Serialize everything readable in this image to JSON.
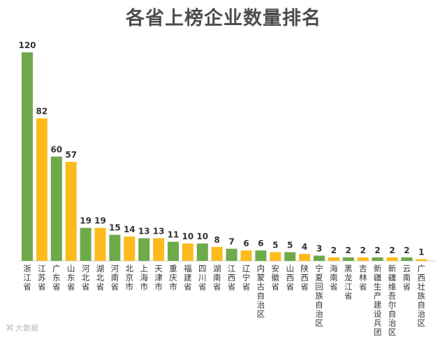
{
  "chart_data": {
    "type": "bar",
    "title": "各省上榜企业数量排名",
    "categories": [
      "浙江省",
      "江苏省",
      "广东省",
      "山东省",
      "河北省",
      "湖北省",
      "河南省",
      "北京市",
      "上海市",
      "天津市",
      "重庆市",
      "福建省",
      "四川省",
      "湖南省",
      "江西省",
      "辽宁省",
      "内蒙古自治区",
      "安徽省",
      "山西省",
      "陕西省",
      "宁夏回族自治区",
      "海南省",
      "黑龙江省",
      "吉林省",
      "新疆生产建设兵团",
      "新疆维吾尔自治区",
      "云南省",
      "广西壮族自治区"
    ],
    "values": [
      120,
      82,
      60,
      57,
      19,
      19,
      15,
      14,
      13,
      13,
      11,
      10,
      10,
      8,
      7,
      6,
      6,
      5,
      5,
      4,
      3,
      2,
      2,
      2,
      2,
      2,
      2,
      1
    ],
    "colors": {
      "odd": "#6ea94a",
      "even": "#fbbb1e"
    },
    "ylim": [
      0,
      120
    ],
    "grid": false,
    "legend": "none"
  },
  "watermark": {
    "text": "大数据",
    "icon": "weibo-like-icon"
  }
}
